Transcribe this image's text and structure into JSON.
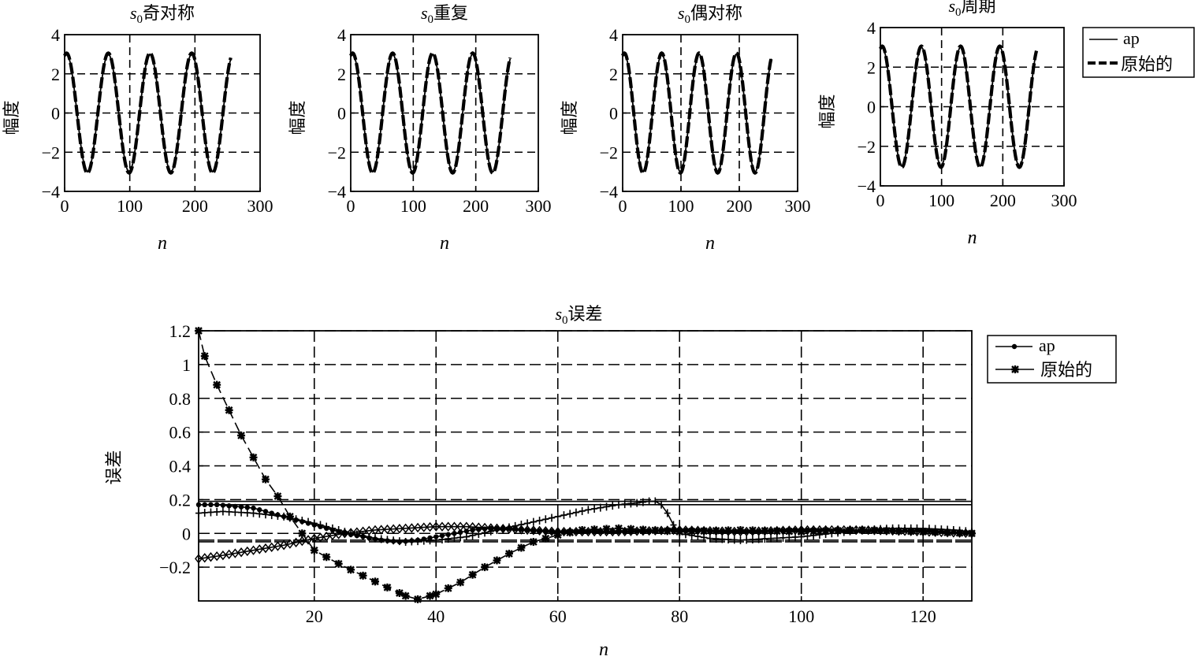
{
  "chart_data": [
    {
      "type": "line",
      "title": "s0奇对称",
      "title_var": "s",
      "title_sub": "0",
      "title_rest": "奇对称",
      "xlabel": "n",
      "ylabel": "幅度",
      "xlim": [
        0,
        300
      ],
      "ylim": [
        -4,
        4
      ],
      "xticks": [
        "0",
        "100",
        "200",
        "300"
      ],
      "yticks": [
        "−4",
        "−2",
        "0",
        "2",
        "4"
      ],
      "grid": true,
      "signal": {
        "amplitude": 3,
        "period": 64,
        "phase_deg": 73,
        "n_max": 255
      },
      "series": [
        {
          "name": "ap",
          "style": "solid"
        },
        {
          "name": "原始的",
          "style": "dashed"
        }
      ]
    },
    {
      "type": "line",
      "title": "s0重复",
      "title_var": "s",
      "title_sub": "0",
      "title_rest": "重复",
      "xlabel": "n",
      "ylabel": "幅度",
      "xlim": [
        0,
        300
      ],
      "ylim": [
        -4,
        4
      ],
      "xticks": [
        "0",
        "100",
        "200",
        "300"
      ],
      "yticks": [
        "−4",
        "−2",
        "0",
        "2",
        "4"
      ],
      "grid": true,
      "signal": {
        "amplitude": 3,
        "period": 64,
        "phase_deg": 73,
        "n_max": 255
      },
      "series": [
        {
          "name": "ap",
          "style": "solid"
        },
        {
          "name": "原始的",
          "style": "dashed"
        }
      ]
    },
    {
      "type": "line",
      "title": "s0偶对称",
      "title_var": "s",
      "title_sub": "0",
      "title_rest": "偶对称",
      "xlabel": "n",
      "ylabel": "幅度",
      "xlim": [
        0,
        300
      ],
      "ylim": [
        -4,
        4
      ],
      "xticks": [
        "0",
        "100",
        "200",
        "300"
      ],
      "yticks": [
        "−4",
        "−2",
        "0",
        "2",
        "4"
      ],
      "grid": true,
      "signal": {
        "amplitude": 3,
        "period": 64,
        "phase_deg": 73,
        "n_max": 255
      },
      "series": [
        {
          "name": "ap",
          "style": "solid"
        },
        {
          "name": "原始的",
          "style": "dashed"
        }
      ]
    },
    {
      "type": "line",
      "title": "s0周期",
      "title_var": "s",
      "title_sub": "0",
      "title_rest": "周期",
      "xlabel": "n",
      "ylabel": "幅度",
      "xlim": [
        0,
        300
      ],
      "ylim": [
        -4,
        4
      ],
      "xticks": [
        "0",
        "100",
        "200",
        "300"
      ],
      "yticks": [
        "−4",
        "−2",
        "0",
        "2",
        "4"
      ],
      "grid": true,
      "signal": {
        "amplitude": 3,
        "period": 64,
        "phase_deg": 73,
        "n_max": 255
      },
      "series": [
        {
          "name": "ap",
          "style": "solid"
        },
        {
          "name": "原始的",
          "style": "dashed"
        }
      ],
      "legend": {
        "location": "top-right",
        "entries": [
          "ap",
          "原始的"
        ]
      }
    },
    {
      "type": "line",
      "title": "s0误差",
      "title_var": "s",
      "title_sub": "0",
      "title_rest": "误差",
      "xlabel": "n",
      "ylabel": "误差",
      "xlim": [
        1,
        128
      ],
      "ylim": [
        -0.4,
        1.2
      ],
      "xticks": [
        "20",
        "40",
        "60",
        "80",
        "100",
        "120"
      ],
      "yticks": [
        "−0.2",
        "0",
        "0.2",
        "0.4",
        "0.6",
        "0.8",
        "1",
        "1.2"
      ],
      "grid": true,
      "legend": {
        "location": "top-right",
        "entries": [
          "ap",
          "原始的"
        ]
      },
      "series": [
        {
          "name": "原始的",
          "marker": "star",
          "style": "dashed",
          "points": [
            [
              1,
              1.2
            ],
            [
              2,
              1.05
            ],
            [
              4,
              0.88
            ],
            [
              6,
              0.73
            ],
            [
              8,
              0.58
            ],
            [
              10,
              0.45
            ],
            [
              12,
              0.32
            ],
            [
              14,
              0.22
            ],
            [
              16,
              0.1
            ],
            [
              18,
              0.0
            ],
            [
              20,
              -0.1
            ],
            [
              24,
              -0.18
            ],
            [
              28,
              -0.25
            ],
            [
              32,
              -0.32
            ],
            [
              35,
              -0.37
            ],
            [
              37,
              -0.39
            ],
            [
              40,
              -0.36
            ],
            [
              44,
              -0.29
            ],
            [
              48,
              -0.2
            ],
            [
              52,
              -0.12
            ],
            [
              56,
              -0.05
            ],
            [
              60,
              -0.01
            ],
            [
              64,
              0.02
            ],
            [
              70,
              0.03
            ],
            [
              80,
              0.01
            ],
            [
              90,
              0.02
            ],
            [
              100,
              0.01
            ],
            [
              110,
              0.02
            ],
            [
              120,
              0.01
            ],
            [
              128,
              0.0
            ]
          ]
        },
        {
          "name": "ap",
          "marker": "dot",
          "style": "solid",
          "points": [
            [
              1,
              0.17
            ],
            [
              4,
              0.17
            ],
            [
              7,
              0.16
            ],
            [
              10,
              0.15
            ],
            [
              13,
              0.12
            ],
            [
              16,
              0.09
            ],
            [
              19,
              0.06
            ],
            [
              22,
              0.03
            ],
            [
              25,
              0.0
            ],
            [
              28,
              -0.02
            ],
            [
              31,
              -0.04
            ],
            [
              34,
              -0.05
            ],
            [
              37,
              -0.04
            ],
            [
              40,
              -0.02
            ],
            [
              43,
              0.0
            ],
            [
              46,
              0.02
            ],
            [
              49,
              0.03
            ],
            [
              52,
              0.03
            ],
            [
              55,
              0.02
            ],
            [
              60,
              0.01
            ],
            [
              70,
              0.01
            ],
            [
              80,
              0.02
            ],
            [
              90,
              0.01
            ],
            [
              100,
              0.02
            ],
            [
              110,
              0.01
            ],
            [
              120,
              0.02
            ],
            [
              128,
              0.0
            ]
          ]
        },
        {
          "name": "",
          "marker": "plus",
          "style": "solid",
          "points": [
            [
              1,
              0.12
            ],
            [
              5,
              0.13
            ],
            [
              10,
              0.12
            ],
            [
              15,
              0.1
            ],
            [
              20,
              0.06
            ],
            [
              25,
              0.01
            ],
            [
              30,
              -0.03
            ],
            [
              35,
              -0.05
            ],
            [
              40,
              -0.04
            ],
            [
              45,
              -0.02
            ],
            [
              50,
              0.02
            ],
            [
              55,
              0.06
            ],
            [
              60,
              0.1
            ],
            [
              65,
              0.14
            ],
            [
              70,
              0.17
            ],
            [
              73,
              0.18
            ],
            [
              75,
              0.19
            ],
            [
              76,
              0.19
            ],
            [
              77,
              0.17
            ],
            [
              78,
              0.12
            ],
            [
              79,
              0.05
            ],
            [
              80,
              0.0
            ],
            [
              85,
              -0.03
            ],
            [
              90,
              -0.04
            ],
            [
              95,
              -0.03
            ],
            [
              100,
              -0.02
            ],
            [
              105,
              0.0
            ],
            [
              110,
              0.02
            ],
            [
              115,
              0.03
            ],
            [
              120,
              0.03
            ],
            [
              125,
              0.02
            ],
            [
              128,
              0.01
            ]
          ]
        },
        {
          "name": "",
          "marker": "diamond",
          "style": "solid",
          "points": [
            [
              1,
              -0.15
            ],
            [
              5,
              -0.13
            ],
            [
              10,
              -0.1
            ],
            [
              15,
              -0.07
            ],
            [
              20,
              -0.03
            ],
            [
              25,
              0.0
            ],
            [
              30,
              0.02
            ],
            [
              35,
              0.03
            ],
            [
              40,
              0.04
            ],
            [
              45,
              0.04
            ],
            [
              50,
              0.03
            ],
            [
              55,
              0.02
            ],
            [
              60,
              0.01
            ],
            [
              70,
              0.01
            ],
            [
              80,
              0.02
            ],
            [
              90,
              0.01
            ],
            [
              100,
              0.02
            ],
            [
              110,
              0.02
            ],
            [
              120,
              0.01
            ],
            [
              128,
              0.0
            ]
          ]
        }
      ],
      "reference_lines": [
        0.19,
        0.17,
        -0.04,
        -0.05
      ]
    }
  ]
}
